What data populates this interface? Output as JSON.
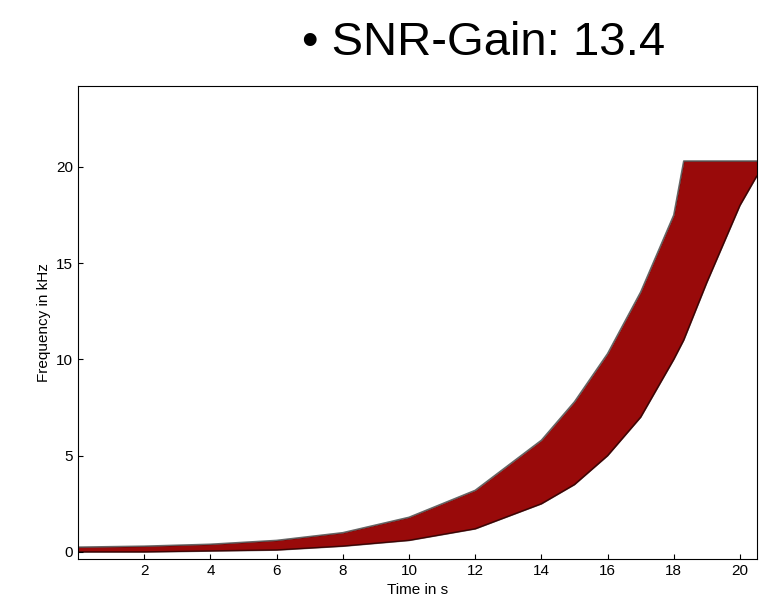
{
  "chart_data": {
    "type": "band",
    "title": "• SNR-Gain: 13.4",
    "xlabel": "Time in s",
    "ylabel": "Frequency in kHz",
    "x": [
      0,
      2,
      4,
      6,
      8,
      10,
      12,
      14,
      15,
      16,
      17,
      18,
      18.3,
      19,
      20,
      20.5
    ],
    "series": [
      {
        "color": "#990a0a",
        "low": [
          0,
          0,
          0.05,
          0.1,
          0.3,
          0.6,
          1.2,
          2.5,
          3.5,
          5.0,
          7.0,
          10.0,
          11.0,
          14.0,
          18.0,
          19.5
        ],
        "high": [
          0.25,
          0.3,
          0.4,
          0.6,
          1.0,
          1.8,
          3.2,
          5.8,
          7.8,
          10.3,
          13.5,
          17.5,
          20.3,
          20.3,
          20.3,
          20.3
        ]
      }
    ],
    "xlim": [
      0,
      20.5
    ],
    "ylim": [
      -0.35,
      24.2
    ],
    "xticks": [
      2,
      4,
      6,
      8,
      10,
      12,
      14,
      16,
      18,
      20
    ],
    "yticks": [
      0,
      5,
      10,
      15,
      20
    ],
    "grid": false
  }
}
